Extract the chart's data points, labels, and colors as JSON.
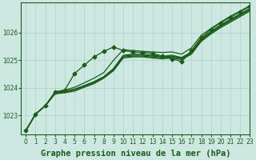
{
  "title": "Graphe pression niveau de la mer (hPa)",
  "background_color": "#cce8e0",
  "grid_color": "#aad0c8",
  "line_color": "#1a5c1a",
  "xlim": [
    -0.5,
    23
  ],
  "ylim": [
    1022.3,
    1027.1
  ],
  "yticks": [
    1023,
    1024,
    1025,
    1026
  ],
  "xticks": [
    0,
    1,
    2,
    3,
    4,
    5,
    6,
    7,
    8,
    9,
    10,
    11,
    12,
    13,
    14,
    15,
    16,
    17,
    18,
    19,
    20,
    21,
    22,
    23
  ],
  "series": [
    [
      1022.45,
      1023.05,
      1023.35,
      1023.85,
      1023.92,
      1024.02,
      1024.18,
      1024.35,
      1024.55,
      1025.0,
      1025.38,
      1025.35,
      1025.32,
      1025.3,
      1025.28,
      1025.3,
      1025.22,
      1025.45,
      1025.9,
      1026.15,
      1026.38,
      1026.6,
      1026.78,
      1026.98
    ],
    [
      1022.45,
      1023.05,
      1023.35,
      1023.82,
      1023.88,
      1023.95,
      1024.08,
      1024.22,
      1024.4,
      1024.7,
      1025.18,
      1025.22,
      1025.22,
      1025.18,
      1025.14,
      1025.18,
      1025.1,
      1025.3,
      1025.78,
      1026.05,
      1026.28,
      1026.48,
      1026.68,
      1026.88
    ],
    [
      1022.45,
      1023.05,
      1023.35,
      1023.82,
      1023.88,
      1023.95,
      1024.08,
      1024.22,
      1024.4,
      1024.68,
      1025.15,
      1025.18,
      1025.18,
      1025.15,
      1025.12,
      1025.15,
      1025.08,
      1025.28,
      1025.75,
      1026.02,
      1026.25,
      1026.45,
      1026.65,
      1026.85
    ],
    [
      1022.45,
      1023.05,
      1023.35,
      1023.8,
      1023.85,
      1023.92,
      1024.05,
      1024.18,
      1024.38,
      1024.65,
      1025.12,
      1025.15,
      1025.15,
      1025.12,
      1025.08,
      1025.12,
      1025.05,
      1025.25,
      1025.72,
      1025.98,
      1026.22,
      1026.42,
      1026.62,
      1026.82
    ],
    [
      1022.45,
      1023.05,
      1023.35,
      1023.78,
      1023.82,
      1023.88,
      1024.02,
      1024.15,
      1024.35,
      1024.62,
      1025.08,
      1025.12,
      1025.12,
      1025.08,
      1025.05,
      1025.08,
      1025.02,
      1025.22,
      1025.68,
      1025.95,
      1026.18,
      1026.38,
      1026.58,
      1026.78
    ]
  ],
  "outlier_series": {
    "data": [
      1022.45,
      1023.05,
      1023.35,
      1023.85,
      1023.92,
      1024.52,
      1024.82,
      1025.12,
      1025.32,
      1025.48,
      1025.35,
      1025.3,
      1025.28,
      1025.25,
      1025.15,
      1025.05,
      1024.95,
      1025.35,
      1025.82,
      1026.12,
      1026.35,
      1026.55,
      1026.75,
      1026.95
    ],
    "has_marker": true
  },
  "marker": "D",
  "markersize": 2.5,
  "linewidth": 0.9,
  "title_fontsize": 7.5,
  "tick_fontsize": 5.5
}
